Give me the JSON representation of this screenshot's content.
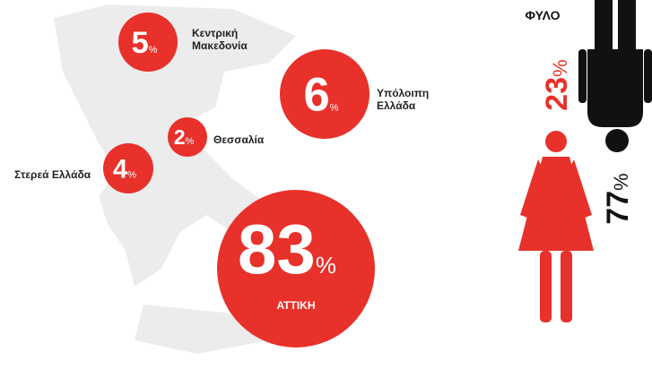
{
  "chart_data": [
    {
      "type": "bubble",
      "unit": "%",
      "color": "#e8312a",
      "categories": [
        "Κεντρική Μακεδονία",
        "Υπόλοιπη Ελλάδα",
        "Θεσσαλία",
        "Στερεά Ελλάδα",
        "ΑΤΤΙΚΗ"
      ],
      "values": [
        5,
        6,
        2,
        4,
        83
      ]
    },
    {
      "type": "gender",
      "title": "ΦΥΛΟ",
      "unit": "%",
      "values": [
        23,
        77
      ],
      "colors": [
        "#e8312a",
        "#111111"
      ]
    }
  ]
}
